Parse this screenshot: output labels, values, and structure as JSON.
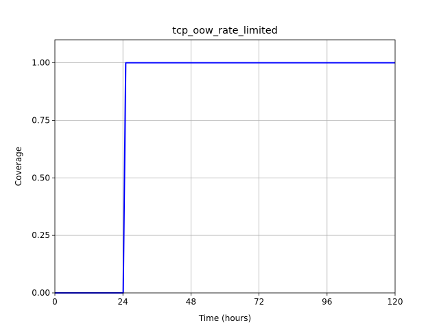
{
  "chart_data": {
    "type": "line",
    "title": "tcp_oow_rate_limited",
    "xlabel": "Time (hours)",
    "ylabel": "Coverage",
    "xlim": [
      0,
      120
    ],
    "ylim": [
      0,
      1.1
    ],
    "xticks": [
      0,
      24,
      48,
      72,
      96,
      120
    ],
    "xtick_labels": [
      "0",
      "24",
      "48",
      "72",
      "96",
      "120"
    ],
    "yticks": [
      0,
      0.25,
      0.5,
      0.75,
      1.0
    ],
    "ytick_labels": [
      "0.00",
      "0.25",
      "0.50",
      "0.75",
      "1.00"
    ],
    "grid": true,
    "legend": "none",
    "series": [
      {
        "color": "#0000ff",
        "x": [
          0,
          24.1,
          24.1,
          25,
          25,
          120
        ],
        "y": [
          0,
          0,
          0,
          1,
          1,
          1
        ]
      }
    ]
  }
}
